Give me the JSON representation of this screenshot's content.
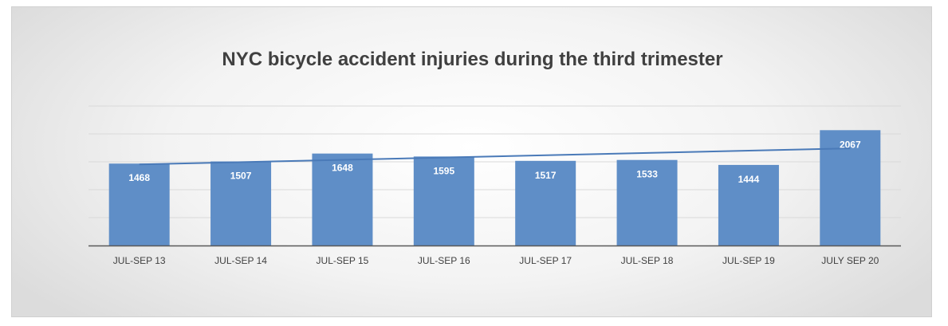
{
  "chart_data": {
    "type": "bar",
    "title": "NYC bicycle accident injuries during the third trimester",
    "xlabel": "",
    "ylabel": "",
    "categories": [
      "JUL-SEP 13",
      "JUL-SEP 14",
      "JUL-SEP 15",
      "JUL-SEP 16",
      "JUL-SEP 17",
      "JUL-SEP 18",
      "JUL-SEP 19",
      "JULY SEP 20"
    ],
    "values": [
      1468,
      1507,
      1648,
      1595,
      1517,
      1533,
      1444,
      2067
    ],
    "ylim": [
      0,
      2500
    ],
    "grid": true,
    "trendline": "linear",
    "colors": {
      "bar": "#5f8ec7",
      "trendline": "#4a7ab8",
      "grid": "#d9d9d9",
      "axis": "#595959"
    }
  }
}
